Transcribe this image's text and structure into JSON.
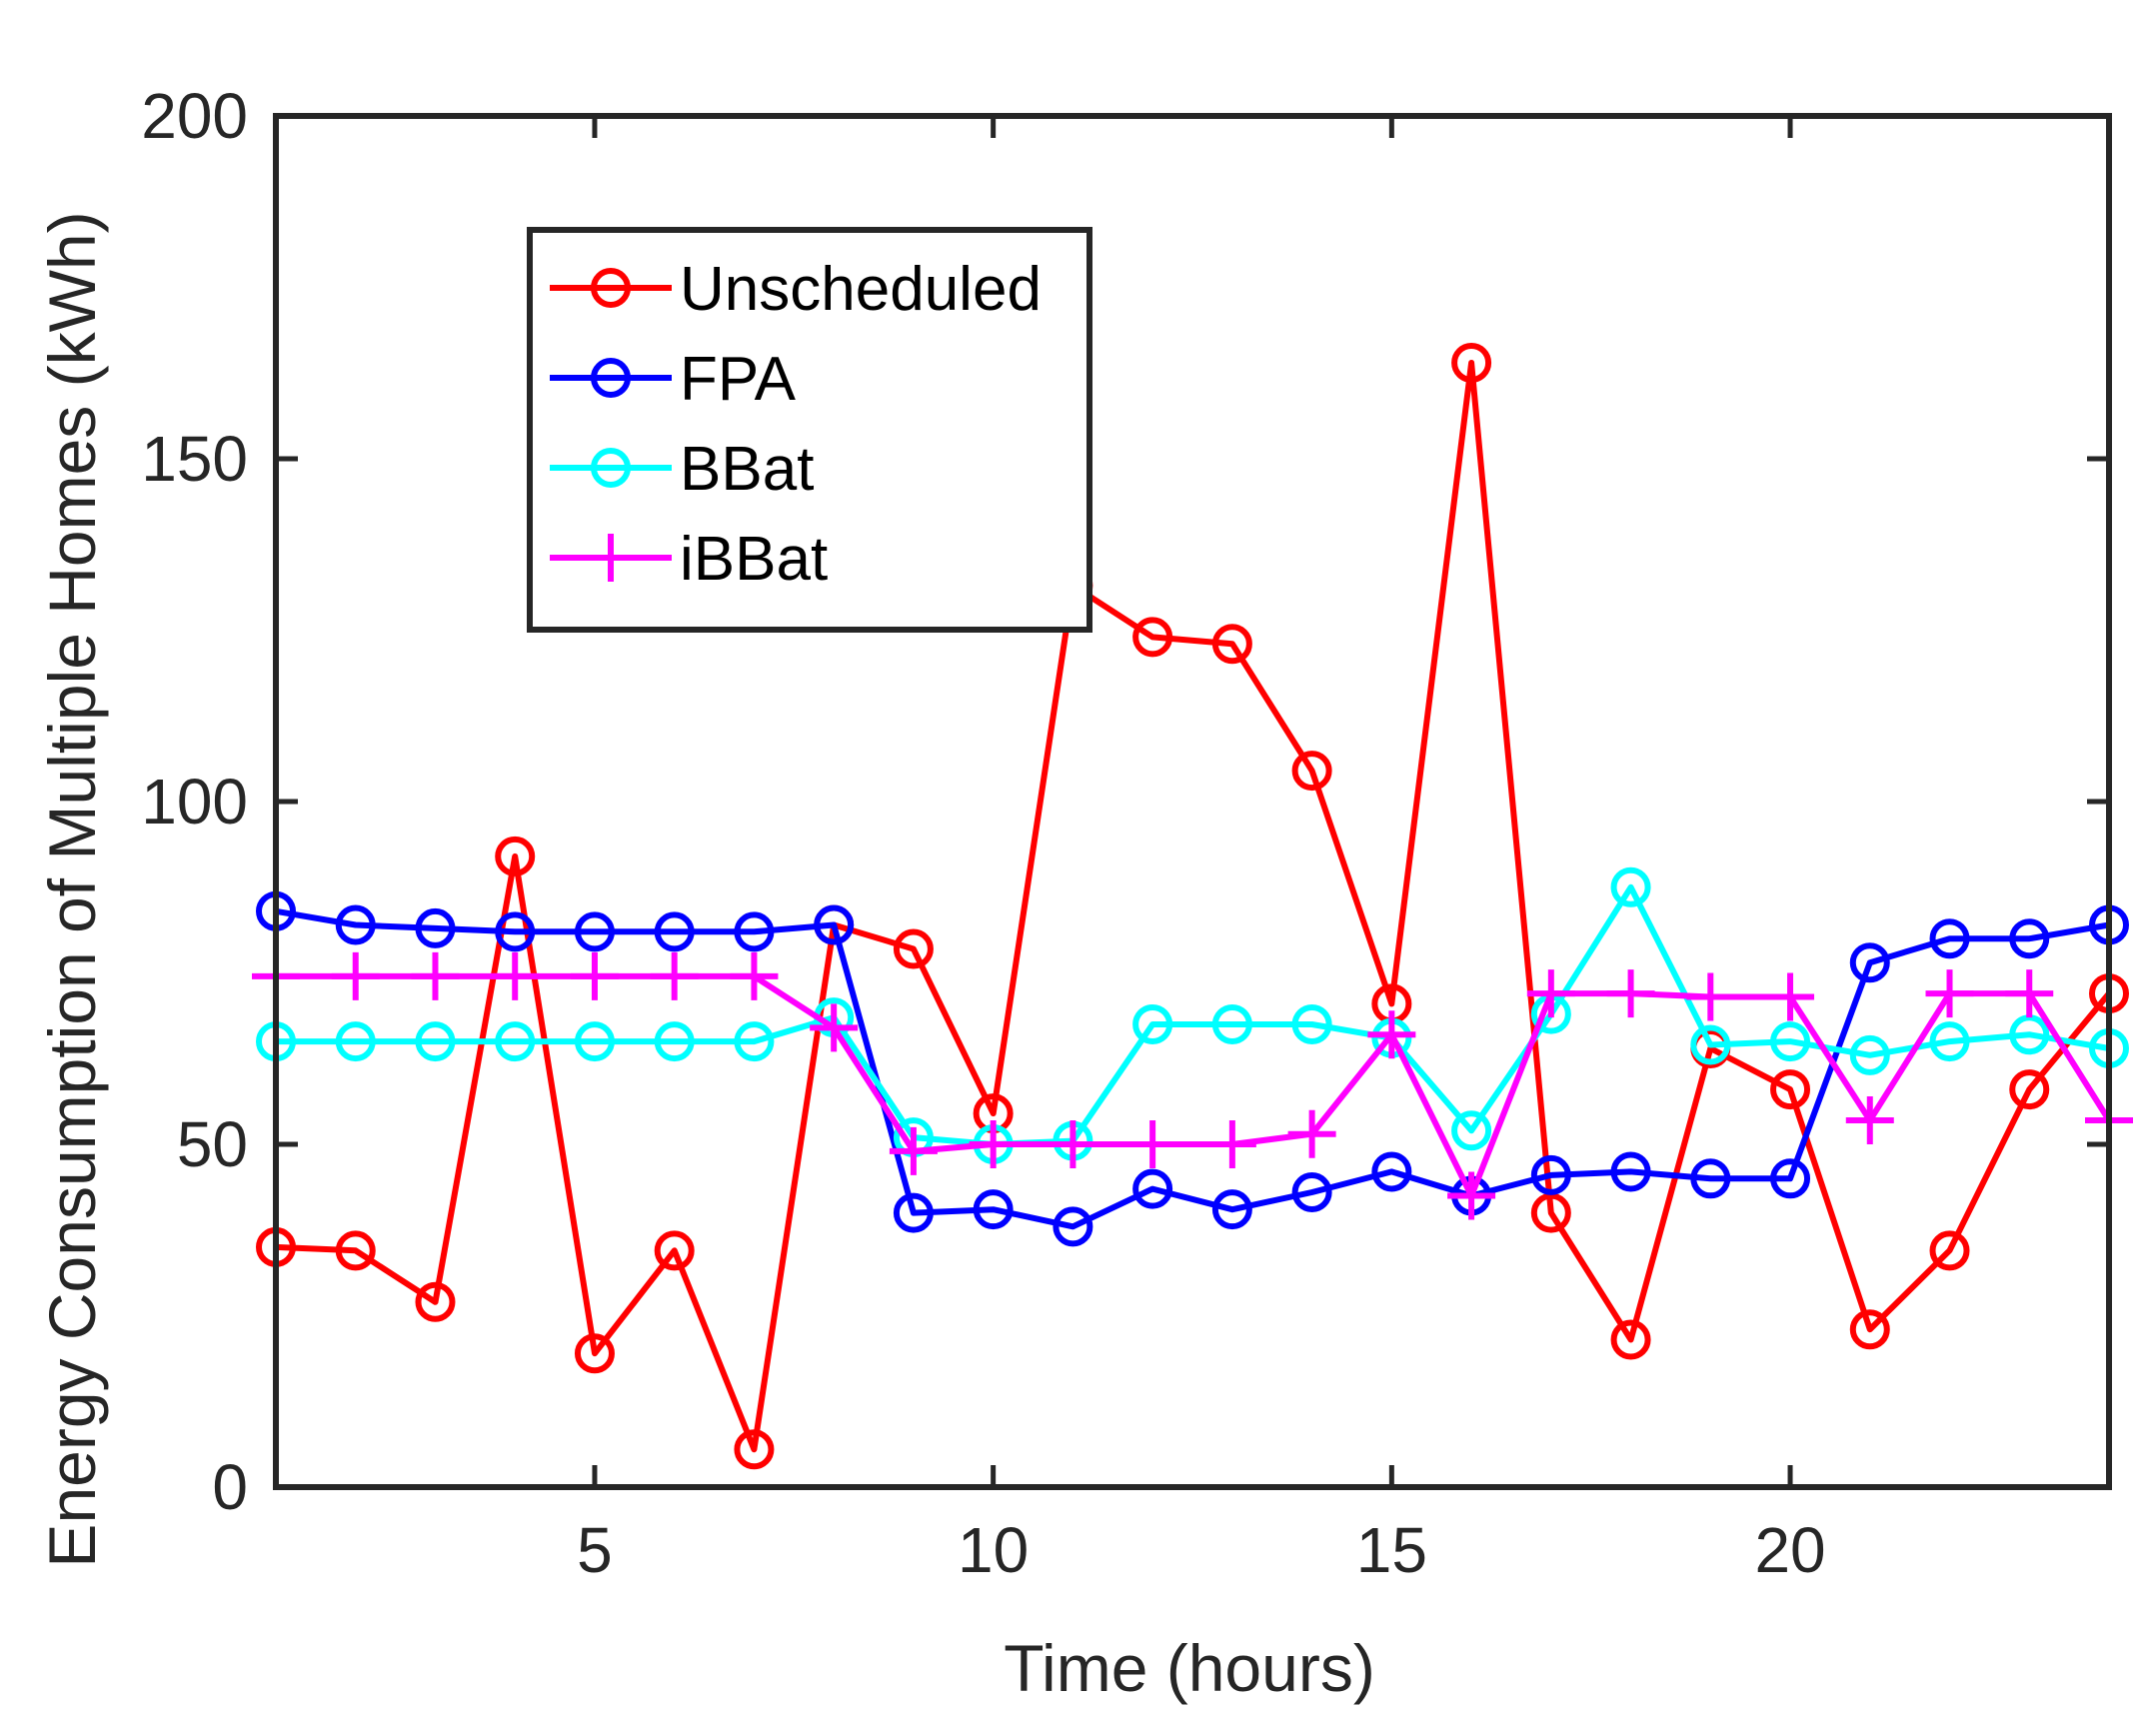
{
  "chart_data": {
    "type": "line",
    "title": "",
    "xlabel": "Time (hours)",
    "ylabel": "Energy Consumption of Multiple Homes (kWh)",
    "xlim": [
      1,
      24
    ],
    "ylim": [
      0,
      200
    ],
    "xticks": [
      5,
      10,
      15,
      20
    ],
    "yticks": [
      0,
      50,
      100,
      150,
      200
    ],
    "grid": false,
    "legend_position": "top-left",
    "x": [
      1,
      2,
      3,
      4,
      5,
      6,
      7,
      8,
      9,
      10,
      11,
      12,
      13,
      14,
      15,
      16,
      17,
      18,
      19,
      20,
      21,
      22,
      23,
      24
    ],
    "series": [
      {
        "name": "Unscheduled",
        "color": "#ff0000",
        "marker": "circle",
        "values": [
          35,
          34.5,
          27,
          92,
          19.5,
          34.5,
          5.5,
          82,
          78.5,
          54.5,
          131.5,
          124,
          123,
          104.5,
          70.5,
          164,
          40,
          21.5,
          64,
          58,
          23,
          34.5,
          58,
          72
        ]
      },
      {
        "name": "FPA",
        "color": "#0000ff",
        "marker": "circle",
        "values": [
          84,
          82,
          81.5,
          81,
          81,
          81,
          81,
          82,
          40,
          40.5,
          38,
          43.5,
          40.5,
          43,
          46,
          42.5,
          45.5,
          46,
          45,
          45,
          76.5,
          80,
          80,
          82
        ]
      },
      {
        "name": "BBat",
        "color": "#00ffff",
        "marker": "circle",
        "values": [
          65,
          65,
          65,
          65,
          65,
          65,
          65,
          68.5,
          51,
          50,
          50.5,
          67.5,
          67.5,
          67.5,
          65.5,
          52,
          69,
          87.5,
          64.5,
          65,
          63,
          65,
          66,
          64
        ]
      },
      {
        "name": "iBBat",
        "color": "#ff00ff",
        "marker": "plus",
        "values": [
          74.5,
          74.5,
          74.5,
          74.5,
          74.5,
          74.5,
          74.5,
          67,
          49,
          50,
          50,
          50,
          50,
          51.5,
          66,
          42.5,
          72,
          72,
          71.5,
          71.5,
          53.5,
          72,
          72,
          53.5
        ]
      }
    ]
  }
}
